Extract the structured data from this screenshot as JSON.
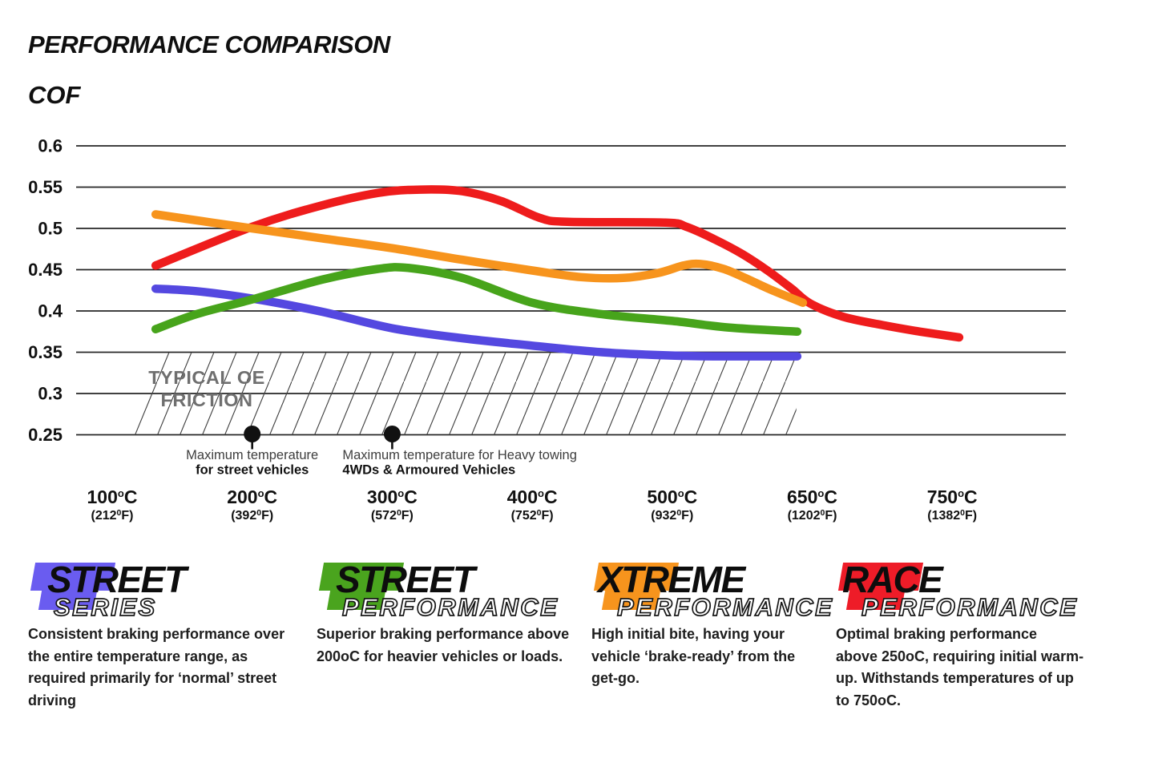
{
  "page": {
    "title": "PERFORMANCE COMPARISON",
    "y_axis_label": "COF"
  },
  "chart_data": {
    "type": "line",
    "title": "PERFORMANCE COMPARISON",
    "ylabel": "COF",
    "ylim": [
      0.25,
      0.6
    ],
    "grid": true,
    "y_ticks": [
      0.6,
      0.55,
      0.5,
      0.45,
      0.4,
      0.35,
      0.3,
      0.25
    ],
    "x_categories_c": [
      100,
      200,
      300,
      400,
      500,
      650,
      750
    ],
    "x_categories_f": [
      212,
      392,
      572,
      752,
      932,
      1202,
      1382
    ],
    "x_unit_c": "C",
    "x_unit_f": "F",
    "series": [
      {
        "name": "Street Series",
        "color": "#5448E0",
        "points": [
          [
            131,
            0.427
          ],
          [
            160,
            0.424
          ],
          [
            200,
            0.415
          ],
          [
            250,
            0.399
          ],
          [
            300,
            0.379
          ],
          [
            350,
            0.367
          ],
          [
            400,
            0.358
          ],
          [
            450,
            0.35
          ],
          [
            500,
            0.346
          ],
          [
            550,
            0.345
          ],
          [
            634,
            0.345
          ]
        ]
      },
      {
        "name": "Street Performance",
        "color": "#47A41B",
        "points": [
          [
            131,
            0.378
          ],
          [
            160,
            0.396
          ],
          [
            200,
            0.414
          ],
          [
            250,
            0.438
          ],
          [
            290,
            0.451
          ],
          [
            312,
            0.452
          ],
          [
            350,
            0.44
          ],
          [
            400,
            0.41
          ],
          [
            450,
            0.396
          ],
          [
            500,
            0.388
          ],
          [
            560,
            0.38
          ],
          [
            634,
            0.375
          ]
        ]
      },
      {
        "name": "Xtreme Performance",
        "color": "#F7941D",
        "points": [
          [
            131,
            0.517
          ],
          [
            200,
            0.5
          ],
          [
            250,
            0.488
          ],
          [
            300,
            0.476
          ],
          [
            350,
            0.462
          ],
          [
            400,
            0.449
          ],
          [
            435,
            0.441
          ],
          [
            465,
            0.44
          ],
          [
            490,
            0.446
          ],
          [
            512,
            0.455
          ],
          [
            530,
            0.457
          ],
          [
            555,
            0.451
          ],
          [
            580,
            0.439
          ],
          [
            605,
            0.426
          ],
          [
            640,
            0.41
          ]
        ]
      },
      {
        "name": "Race Performance",
        "color": "#EE1C1C",
        "points": [
          [
            131,
            0.455
          ],
          [
            200,
            0.502
          ],
          [
            250,
            0.528
          ],
          [
            290,
            0.543
          ],
          [
            320,
            0.547
          ],
          [
            350,
            0.545
          ],
          [
            378,
            0.533
          ],
          [
            405,
            0.513
          ],
          [
            425,
            0.508
          ],
          [
            495,
            0.507
          ],
          [
            515,
            0.502
          ],
          [
            545,
            0.487
          ],
          [
            575,
            0.469
          ],
          [
            602,
            0.449
          ],
          [
            628,
            0.427
          ],
          [
            648,
            0.409
          ],
          [
            672,
            0.393
          ],
          [
            700,
            0.383
          ],
          [
            727,
            0.375
          ],
          [
            755,
            0.368
          ]
        ]
      }
    ],
    "oe_region": {
      "label_lines": [
        "TYPICAL OE",
        "FRICTION"
      ],
      "cof_from": 0.25,
      "cof_to": 0.35,
      "temp_from": 134,
      "temp_to": 633
    },
    "annotations": [
      {
        "temp": 200,
        "cof": 0.25,
        "lines": [
          "Maximum temperature",
          "for street vehicles"
        ],
        "align": "center"
      },
      {
        "temp": 300,
        "cof": 0.25,
        "lines": [
          "Maximum temperature for Heavy towing",
          "4WDs & Armoured Vehicles"
        ],
        "align": "left"
      }
    ],
    "legend_position": "bottom"
  },
  "legend": {
    "cards": [
      {
        "main": "STREET",
        "sub": "SERIES",
        "color": "#6A5CF0",
        "desc_lines": [
          "Consistent braking performance over",
          "the entire temperature range, as",
          "required primarily for ‘normal’ street",
          "driving"
        ]
      },
      {
        "main": "STREET",
        "sub": "PERFORMANCE",
        "color": "#4AA41E",
        "desc_lines": [
          "Superior braking performance above",
          "200oC for heavier vehicles or loads."
        ]
      },
      {
        "main": "XTREME",
        "sub": "PERFORMANCE",
        "color": "#F7941D",
        "desc_lines": [
          "High initial bite, having your",
          "vehicle ‘brake-ready’ from the",
          "get-go."
        ]
      },
      {
        "main": "RACE",
        "sub": "PERFORMANCE",
        "color": "#EE1C28",
        "desc_lines": [
          "Optimal braking performance",
          "above 250oC, requiring initial warm-",
          "up. Withstands temperatures of up",
          "to 750oC."
        ]
      }
    ]
  }
}
